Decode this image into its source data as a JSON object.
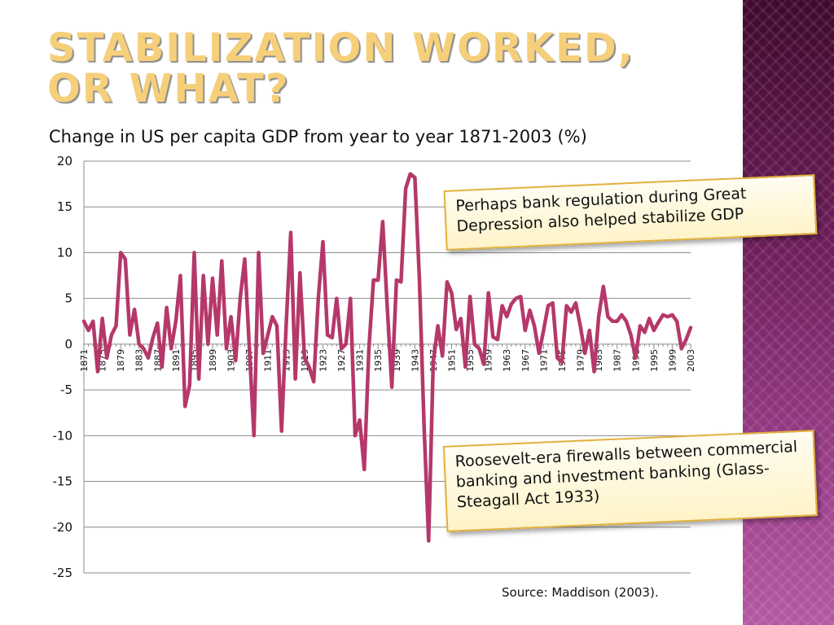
{
  "slide": {
    "title": "Stabilization worked,\nor what?",
    "source": "Source: Maddison (2003).",
    "accent_color": "#f6cf7a",
    "band_color": "#6e1e5b"
  },
  "callouts": {
    "top": "Perhaps bank regulation during Great Depression also helped stabilize GDP",
    "bottom": "Roosevelt-era firewalls between commercial banking and investment banking (Glass-Steagall Act 1933)"
  },
  "chart_data": {
    "type": "line",
    "title": "Change in US per capita GDP from year to year 1871-2003 (%)",
    "xlabel": "",
    "ylabel": "",
    "ylim": [
      -25,
      20
    ],
    "y_ticks": [
      20,
      15,
      10,
      5,
      0,
      -5,
      -10,
      -15,
      -20,
      -25
    ],
    "x_ticks": [
      1871,
      1875,
      1879,
      1883,
      1887,
      1891,
      1895,
      1899,
      1903,
      1907,
      1911,
      1915,
      1919,
      1923,
      1927,
      1931,
      1935,
      1939,
      1943,
      1947,
      1951,
      1955,
      1959,
      1963,
      1967,
      1971,
      1975,
      1979,
      1983,
      1987,
      1991,
      1995,
      1999,
      2003
    ],
    "x_range": [
      1871,
      2003
    ],
    "grid": "horizontal",
    "line_color": "#b5386a",
    "series": [
      {
        "x": [
          1871,
          1872,
          1873,
          1874,
          1875,
          1876,
          1877,
          1878,
          1879,
          1880,
          1881,
          1882,
          1883,
          1884,
          1885,
          1886,
          1887,
          1888,
          1889,
          1890,
          1891,
          1892,
          1893,
          1894,
          1895,
          1896,
          1897,
          1898,
          1899,
          1900,
          1901,
          1902,
          1903,
          1904,
          1905,
          1906,
          1907,
          1908,
          1909,
          1910,
          1911,
          1912,
          1913,
          1914,
          1915,
          1916,
          1917,
          1918,
          1919,
          1920,
          1921,
          1922,
          1923,
          1924,
          1925,
          1926,
          1927,
          1928,
          1929,
          1930,
          1931,
          1932,
          1933,
          1934,
          1935,
          1936,
          1937,
          1938,
          1939,
          1940,
          1941,
          1942,
          1943,
          1944,
          1945,
          1946,
          1947,
          1948,
          1949,
          1950,
          1951,
          1952,
          1953,
          1954,
          1955,
          1956,
          1957,
          1958,
          1959,
          1960,
          1961,
          1962,
          1963,
          1964,
          1965,
          1966,
          1967,
          1968,
          1969,
          1970,
          1971,
          1972,
          1973,
          1974,
          1975,
          1976,
          1977,
          1978,
          1979,
          1980,
          1981,
          1982,
          1983,
          1984,
          1985,
          1986,
          1987,
          1988,
          1989,
          1990,
          1991,
          1992,
          1993,
          1994,
          1995,
          1996,
          1997,
          1998,
          1999,
          2000,
          2001,
          2002,
          2003
        ],
        "values": [
          2.5,
          1.5,
          2.5,
          -3,
          2.8,
          -1.5,
          1,
          2,
          10,
          9.3,
          1,
          3.8,
          0,
          -0.5,
          -1.5,
          0.7,
          2.3,
          -2.5,
          4,
          -0.5,
          2.5,
          7.5,
          -6.8,
          -4.5,
          10,
          -3.8,
          7.5,
          0,
          7.2,
          1,
          9.1,
          -0.5,
          3,
          -1.8,
          5,
          9.3,
          -0.5,
          -10,
          10,
          -1,
          1,
          3,
          2,
          -9.5,
          2,
          12.2,
          -3.8,
          7.8,
          -1.5,
          -2.5,
          -4.1,
          5,
          11.2,
          1,
          0.7,
          5,
          -0.5,
          0,
          5,
          -10,
          -8.3,
          -13.7,
          -0.5,
          7,
          7,
          13.4,
          4,
          -4.7,
          7,
          6.8,
          17,
          18.6,
          18.2,
          7,
          -9,
          -21.5,
          -2,
          2,
          -1.3,
          6.8,
          5.6,
          1.6,
          2.8,
          -2.5,
          5.2,
          0,
          -0.5,
          -2.2,
          5.6,
          0.8,
          0.5,
          4.2,
          3,
          4.4,
          5,
          5.2,
          1.5,
          3.7,
          2,
          -1,
          1.5,
          4.2,
          4.5,
          -1.5,
          -2,
          4.2,
          3.5,
          4.5,
          2,
          -1,
          1.5,
          -3,
          3,
          6.3,
          3,
          2.5,
          2.5,
          3.2,
          2.5,
          1,
          -1.5,
          2,
          1.3,
          2.8,
          1.5,
          2.4,
          3.2,
          3,
          3.2,
          2.5,
          -0.5,
          0.5,
          1.8
        ]
      }
    ]
  }
}
